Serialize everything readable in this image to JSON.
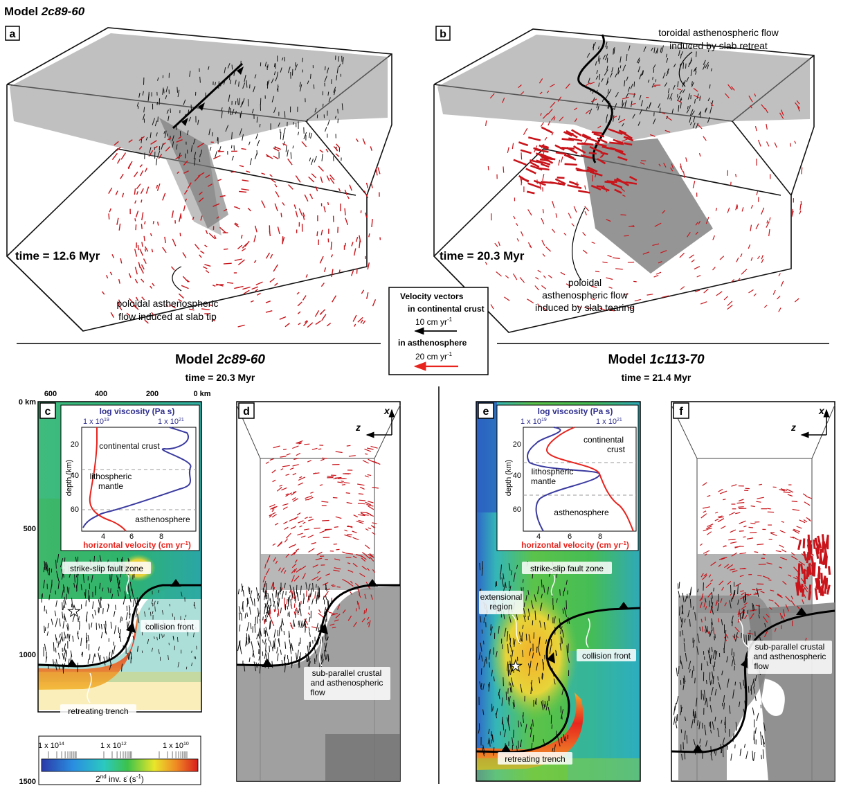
{
  "figure": {
    "title_prefix": "Model ",
    "title_model": "2c89-60"
  },
  "panels": {
    "a": {
      "letter": "a",
      "time": "time = 12.6 Myr",
      "annotation_lines": [
        "poloidal asthenospheric",
        "flow induced at slab tip"
      ]
    },
    "b": {
      "letter": "b",
      "time": "time = 20.3  Myr",
      "top_annotation_lines": [
        "toroidal asthenospheric flow",
        "induced by slab retreat"
      ],
      "bottom_annotation_lines": [
        "poloidal",
        "asthenospheric flow",
        "induced by slab tearing"
      ]
    },
    "c": {
      "letter": "c",
      "depth_axis_labels": [
        "0 km",
        "500",
        "1000",
        "1500"
      ],
      "distance_axis_labels": [
        "600",
        "400",
        "200",
        "0 km"
      ],
      "inset": {
        "top_axis_title": "log viscosity (Pa s)",
        "top_ticks": [
          "1 x 10",
          "1 x 10"
        ],
        "top_exponents": [
          "19",
          "21"
        ],
        "ylabel": "depth (km)",
        "yticks": [
          "20",
          "40",
          "60"
        ],
        "bottom_axis_title_main": "horizontal velocity (cm yr",
        "bottom_axis_title_exp": "-1",
        "bottom_axis_title_end": ")",
        "xticks": [
          "4",
          "6",
          "8"
        ],
        "layers": [
          "continental crust",
          "lithospheric",
          "mantle",
          "asthenosphere"
        ]
      },
      "labels": {
        "fault": "strike-slip fault zone",
        "collision": "collision front",
        "trench": "retreating trench"
      },
      "colorbar": {
        "ticks": [
          "1 x 10",
          "1 x 10",
          "1 x 10"
        ],
        "exponents": [
          "14",
          "12",
          "10"
        ],
        "title_pre": "2",
        "title_sup": "nd",
        "title_post": " inv. ε̇ (s",
        "title_exp": "-1",
        "title_end": ")"
      }
    },
    "d": {
      "letter": "d",
      "axis_x": "x",
      "axis_z": "z",
      "label_lines": [
        "sub-parallel crustal",
        "and asthenospheric",
        "flow"
      ]
    },
    "e": {
      "letter": "e",
      "inset": {
        "top_axis_title": "log viscosity (Pa s)",
        "top_ticks": [
          "1 x 10",
          "1 x 10"
        ],
        "top_exponents": [
          "19",
          "21"
        ],
        "ylabel": "depth (km)",
        "yticks": [
          "20",
          "40",
          "60"
        ],
        "bottom_axis_title_main": "horizontal velocity (cm yr",
        "bottom_axis_title_exp": "-1",
        "bottom_axis_title_end": ")",
        "xticks": [
          "4",
          "6",
          "8"
        ],
        "layers": [
          "continental",
          "crust",
          "lithospheric",
          "mantle",
          "asthenosphere"
        ]
      },
      "labels": {
        "fault": "strike-slip fault zone",
        "extensional": [
          "extensional",
          "region"
        ],
        "collision": "collision front",
        "trench": "retreating trench"
      }
    },
    "f": {
      "letter": "f",
      "axis_x": "x",
      "axis_z": "z",
      "label_lines": [
        "sub-parallel crustal",
        "and asthenospheric",
        "flow"
      ]
    }
  },
  "legend": {
    "title": "Velocity vectors",
    "crust_label": "in continental crust",
    "crust_scale_main": "10 cm yr",
    "crust_scale_exp": "-1",
    "asth_label": "in asthenosphere",
    "asth_scale_main": "20 cm yr",
    "asth_scale_exp": "-1",
    "crust_color": "#000000",
    "asth_color": "#e8221c"
  },
  "headings": {
    "left_model_prefix": "Model ",
    "left_model": "2c89-60",
    "left_time": "time = 20.3 Myr",
    "right_model_prefix": "Model ",
    "right_model": "1c113-70",
    "right_time": "time = 21.4 Myr"
  },
  "colors": {
    "viscosity_line": "#3a3aa0",
    "velocity_line": "#e8221c",
    "slab_gray": "#8a8a8a",
    "vector_red": "#c8141a"
  }
}
